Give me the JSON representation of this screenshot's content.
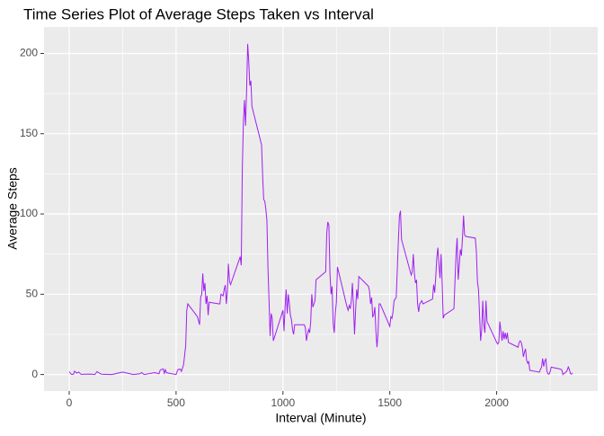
{
  "chart_data": {
    "type": "line",
    "title": "Time Series Plot of Average Steps Taken vs Interval",
    "x_label": "Interval (Minute)",
    "y_label": "Average Steps",
    "color": "#a020f0",
    "grid": true,
    "xlim": [
      -117.75,
      2472.75
    ],
    "ylim": [
      -10.3,
      216.5
    ],
    "xticks": [
      0,
      500,
      1000,
      1500,
      2000
    ],
    "yticks": [
      0,
      50,
      100,
      150,
      200
    ],
    "minor_xticks": [
      250,
      750,
      1250,
      1750,
      2250
    ],
    "minor_yticks": [
      25,
      75,
      125,
      175
    ],
    "x": [
      0,
      10,
      20,
      25,
      35,
      45,
      55,
      100,
      120,
      130,
      150,
      200,
      250,
      300,
      330,
      340,
      350,
      400,
      420,
      425,
      430,
      440,
      445,
      450,
      455,
      500,
      505,
      510,
      520,
      525,
      535,
      545,
      550,
      555,
      600,
      610,
      615,
      620,
      625,
      630,
      635,
      640,
      645,
      650,
      655,
      700,
      705,
      710,
      720,
      725,
      730,
      735,
      740,
      745,
      750,
      755,
      800,
      805,
      810,
      815,
      820,
      825,
      830,
      835,
      840,
      845,
      850,
      855,
      900,
      905,
      910,
      915,
      920,
      925,
      930,
      935,
      940,
      945,
      950,
      955,
      1000,
      1005,
      1010,
      1015,
      1020,
      1025,
      1030,
      1035,
      1040,
      1045,
      1050,
      1055,
      1100,
      1105,
      1110,
      1115,
      1120,
      1125,
      1130,
      1135,
      1140,
      1145,
      1150,
      1155,
      1200,
      1205,
      1210,
      1215,
      1220,
      1225,
      1230,
      1235,
      1240,
      1245,
      1250,
      1255,
      1300,
      1305,
      1310,
      1315,
      1320,
      1325,
      1330,
      1335,
      1340,
      1345,
      1350,
      1355,
      1400,
      1405,
      1410,
      1415,
      1420,
      1425,
      1430,
      1435,
      1440,
      1445,
      1450,
      1455,
      1500,
      1505,
      1510,
      1515,
      1520,
      1525,
      1530,
      1535,
      1540,
      1545,
      1550,
      1555,
      1600,
      1605,
      1610,
      1615,
      1620,
      1625,
      1630,
      1635,
      1640,
      1645,
      1650,
      1655,
      1700,
      1705,
      1710,
      1715,
      1720,
      1725,
      1730,
      1735,
      1740,
      1745,
      1750,
      1755,
      1800,
      1805,
      1810,
      1815,
      1820,
      1825,
      1830,
      1835,
      1840,
      1845,
      1850,
      1855,
      1900,
      1905,
      1910,
      1915,
      1920,
      1925,
      1930,
      1935,
      1940,
      1945,
      1950,
      1955,
      2000,
      2005,
      2010,
      2015,
      2020,
      2025,
      2030,
      2035,
      2040,
      2045,
      2050,
      2055,
      2100,
      2105,
      2110,
      2115,
      2120,
      2125,
      2130,
      2135,
      2140,
      2145,
      2150,
      2155,
      2200,
      2205,
      2210,
      2215,
      2220,
      2225,
      2230,
      2235,
      2240,
      2245,
      2250,
      2255,
      2300,
      2305,
      2310,
      2315,
      2320,
      2325,
      2330,
      2335,
      2340,
      2345,
      2350,
      2355
    ],
    "values": [
      1.7,
      0.1,
      0.1,
      2.1,
      0.9,
      1.5,
      0.1,
      0.3,
      0,
      1.8,
      0.2,
      0,
      1.5,
      0,
      0.5,
      1.2,
      0,
      1.2,
      0.5,
      2.5,
      3.1,
      3.5,
      0.8,
      3.0,
      1.1,
      0,
      2,
      3.2,
      3.3,
      2,
      6,
      18,
      40,
      44,
      36,
      31,
      48,
      50,
      63,
      52,
      57,
      44,
      49,
      37,
      45,
      44,
      44,
      50,
      49,
      53,
      55.7,
      44,
      52,
      69,
      58,
      56,
      73.4,
      68,
      129,
      157,
      171,
      155,
      177,
      206,
      195,
      180,
      183,
      167,
      143,
      124,
      109,
      108,
      103,
      96,
      66,
      46,
      24,
      38,
      35,
      21,
      40,
      27,
      42,
      53,
      38,
      50,
      44,
      37,
      34,
      28,
      25,
      31,
      31,
      29,
      21,
      25,
      28,
      26,
      33,
      50,
      42,
      44,
      46,
      59,
      64,
      88,
      95,
      93,
      63,
      50,
      55,
      32,
      26,
      38,
      45,
      67,
      42,
      40,
      43,
      41,
      46,
      57,
      43,
      25,
      40,
      53,
      47,
      61,
      55,
      52,
      44,
      48,
      36,
      37,
      42,
      27,
      17,
      26,
      44,
      44,
      30,
      36,
      35,
      39,
      46,
      47,
      48,
      65,
      83,
      99,
      102,
      84,
      62,
      64,
      75,
      63,
      57,
      59,
      44,
      39,
      44,
      45,
      46,
      44,
      47,
      56,
      51,
      61,
      73,
      79,
      68,
      60,
      75,
      57,
      35,
      37,
      41,
      58,
      75,
      85,
      59,
      68,
      78,
      74,
      85,
      99,
      87,
      86,
      85,
      77,
      58,
      53,
      37,
      21,
      28,
      46,
      31,
      26,
      46,
      33,
      20,
      19,
      20,
      33,
      27,
      21,
      27,
      22,
      26,
      22,
      26,
      20,
      17,
      20,
      21,
      20,
      17,
      11,
      14,
      16,
      9,
      7,
      8,
      2.6,
      1.5,
      3.3,
      4.6,
      10,
      5,
      8.5,
      9.6,
      2.3,
      0.4,
      0.2,
      1.6,
      4.6,
      3.3,
      2.8,
      0,
      0.8,
      1,
      1.6,
      2.6,
      4.7,
      3.3,
      0.6,
      0.2,
      1.1
    ]
  }
}
